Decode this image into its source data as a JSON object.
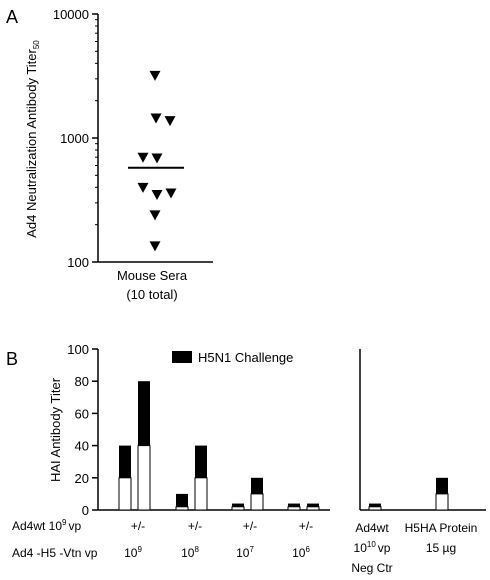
{
  "chart_data": [
    {
      "panel": "A",
      "type": "scatter",
      "y_scale": "log",
      "ylim": [
        100,
        10000
      ],
      "yticks": [
        "100",
        "1000",
        "10000"
      ],
      "ylabel_main": "Ad4 Neutralization Antibody Titer",
      "ylabel_sub": "50",
      "xlabel_line1": "Mouse Sera",
      "xlabel_line2": "(10 total)",
      "points": [
        3200,
        1450,
        1380,
        700,
        690,
        400,
        360,
        350,
        240,
        135
      ],
      "mean": 575,
      "marker": "filled-triangle-down"
    },
    {
      "panel": "B",
      "type": "bar",
      "ylabel": "HAI Antibody Titer",
      "ylim": [
        0,
        100
      ],
      "yticks": [
        "0",
        "20",
        "40",
        "60",
        "80",
        "100"
      ],
      "legend": "H5N1 Challenge",
      "row1_label_main": "Ad4wt 10",
      "row1_label_exp": "9",
      "row1_label_unit": "vp",
      "row2_label": "Ad4 -H5 -Vtn vp",
      "groups": [
        {
          "row1": "+/-",
          "base": "10",
          "exp": "9",
          "bars": [
            {
              "pre": 20,
              "total": 40
            },
            {
              "pre": 40,
              "total": 80
            }
          ]
        },
        {
          "row1": "+/-",
          "base": "10",
          "exp": "8",
          "bars": [
            {
              "pre": 2,
              "total": 10
            },
            {
              "pre": 20,
              "total": 40
            }
          ]
        },
        {
          "row1": "+/-",
          "base": "10",
          "exp": "7",
          "bars": [
            {
              "pre": 2,
              "total": 4
            },
            {
              "pre": 10,
              "total": 20
            }
          ]
        },
        {
          "row1": "+/-",
          "base": "10",
          "exp": "6",
          "bars": [
            {
              "pre": 2,
              "total": 4
            },
            {
              "pre": 2,
              "total": 4
            }
          ]
        }
      ],
      "controls": [
        {
          "pre": 2,
          "total": 4,
          "label1": "Ad4wt",
          "label2_base": "10",
          "label2_exp": "10",
          "label2_unit": "vp",
          "label3": "Neg Ctr"
        },
        {
          "pre": 10,
          "total": 20,
          "label1": "H5HA Protein",
          "label2": "15 µg"
        }
      ],
      "colors": {
        "challenge": "#000000",
        "pre": "#ffffff"
      }
    }
  ],
  "panels": {
    "a": "A",
    "b": "B"
  }
}
